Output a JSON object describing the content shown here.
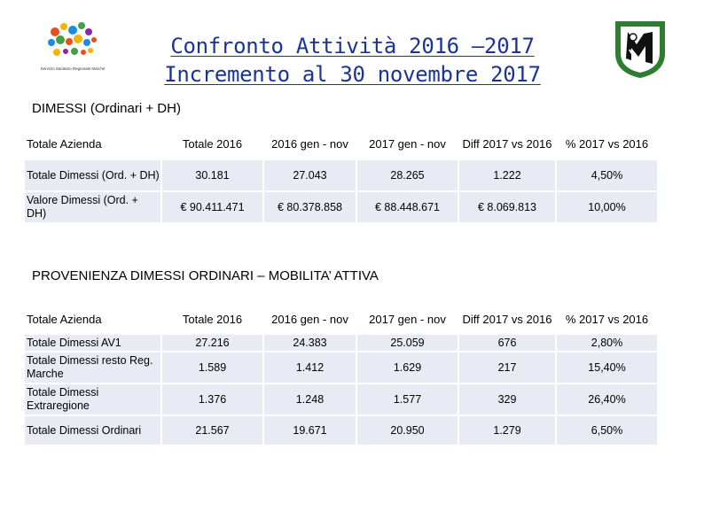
{
  "header": {
    "title_line1": "Confronto Attività 2016 –2017",
    "title_line2": "Incremento al 30 novembre 2017",
    "logo_left_caption": "Servizio Sanitario Regionale Marche"
  },
  "section1": {
    "title": "DIMESSI (Ordinari + DH)",
    "headers": [
      "Totale Azienda",
      "Totale 2016",
      "2016 gen - nov",
      "2017 gen - nov",
      "Diff 2017 vs 2016",
      "% 2017 vs 2016"
    ],
    "rows": [
      [
        "Totale Dimessi (Ord. + DH)",
        "30.181",
        "27.043",
        "28.265",
        "1.222",
        "4,50%"
      ],
      [
        "Valore Dimessi (Ord. + DH)",
        "€ 90.411.471",
        "€ 80.378.858",
        "€ 88.448.671",
        "€ 8.069.813",
        "10,00%"
      ]
    ]
  },
  "section2": {
    "title": "PROVENIENZA DIMESSI ORDINARI – MOBILITA’ ATTIVA",
    "headers": [
      "Totale Azienda",
      "Totale 2016",
      "2016 gen - nov",
      "2017 gen - nov",
      "Diff 2017 vs 2016",
      "% 2017 vs 2016"
    ],
    "rows": [
      [
        "Totale Dimessi AV1",
        "27.216",
        "24.383",
        "25.059",
        "676",
        "2,80%"
      ],
      [
        "Totale Dimessi resto Reg. Marche",
        "1.589",
        "1.412",
        "1.629",
        "217",
        "15,40%"
      ],
      [
        "Totale Dimessi Extraregione",
        "1.376",
        "1.248",
        "1.577",
        "329",
        "26,40%"
      ],
      [
        "Totale Dimessi Ordinari",
        "21.567",
        "19.671",
        "20.950",
        "1.279",
        "6,50%"
      ]
    ]
  },
  "colors": {
    "title": "#1a3399",
    "cell_bg": "#e8ebf4",
    "logo_green": "#2e7d32"
  }
}
